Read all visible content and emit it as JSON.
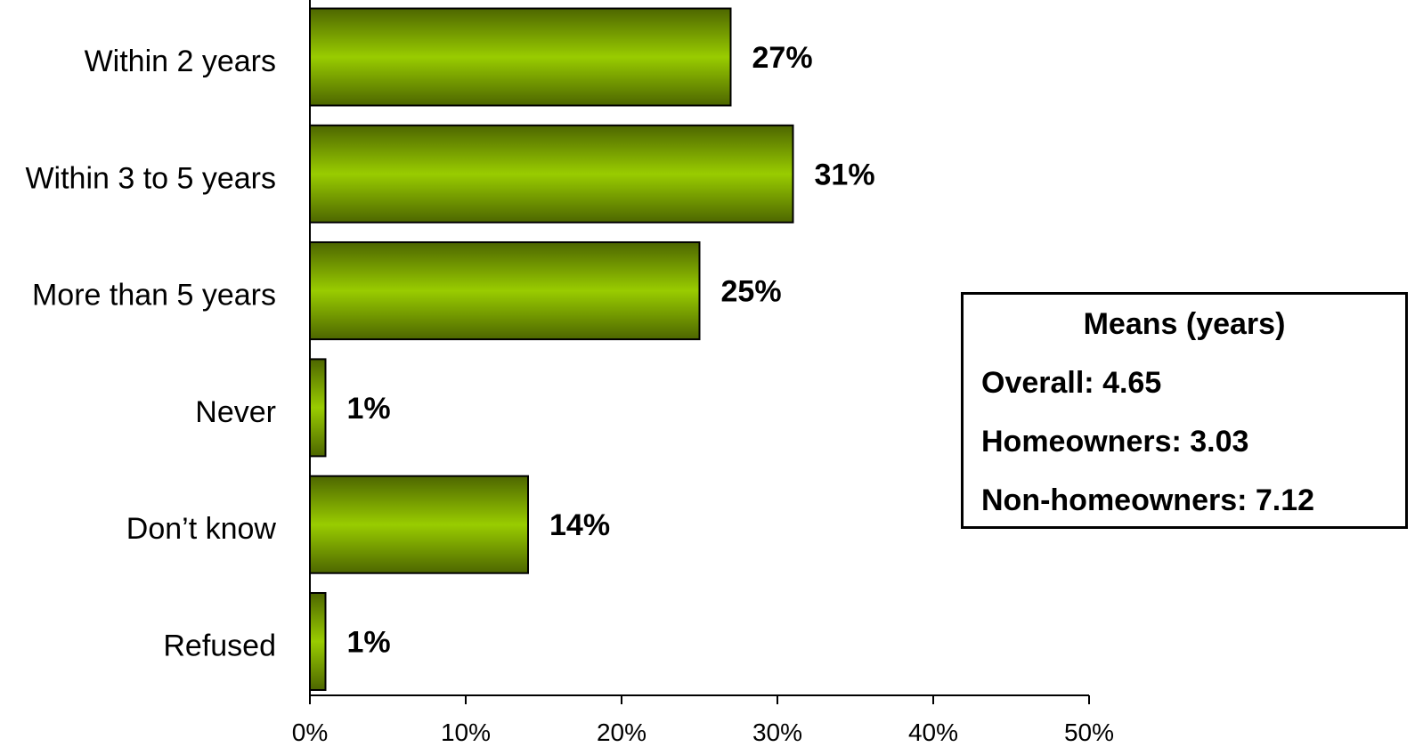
{
  "chart_data": {
    "type": "bar",
    "orientation": "horizontal",
    "categories": [
      "Within 2 years",
      "Within 3 to 5 years",
      "More than 5 years",
      "Never",
      "Don’t know",
      "Refused"
    ],
    "values": [
      27,
      31,
      25,
      1,
      14,
      1
    ],
    "value_labels": [
      "27%",
      "31%",
      "25%",
      "1%",
      "14%",
      "1%"
    ],
    "xlim": [
      0,
      50
    ],
    "x_ticks": [
      0,
      10,
      20,
      30,
      40,
      50
    ],
    "x_tick_labels": [
      "0%",
      "10%",
      "20%",
      "30%",
      "40%",
      "50%"
    ],
    "title": "",
    "xlabel": "",
    "ylabel": "",
    "grid": false,
    "bar_color": "#99cc00",
    "bar_dark_color": "#4d6600"
  },
  "means_box": {
    "title": "Means (years)",
    "overall": "Overall: 4.65",
    "homeowners": "Homeowners: 3.03",
    "non_homeowners": "Non-homeowners: 7.12"
  }
}
